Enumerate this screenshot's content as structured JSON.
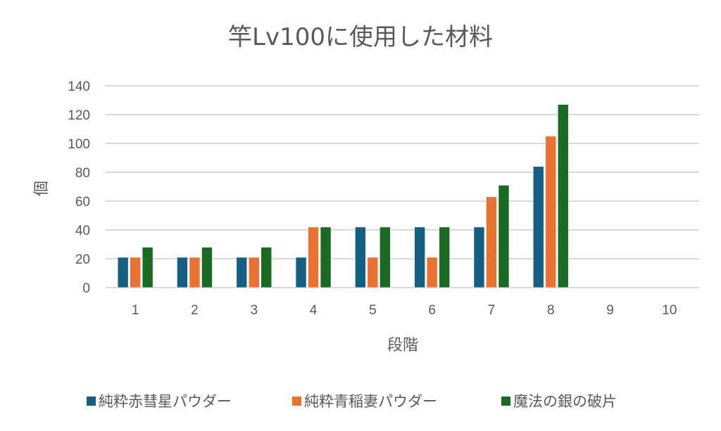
{
  "chart_data": {
    "type": "bar",
    "title": "竿Lv100に使用した材料",
    "xlabel": "段階",
    "ylabel": "個",
    "ylim": [
      0,
      140
    ],
    "yticks": [
      0,
      20,
      40,
      60,
      80,
      100,
      120,
      140
    ],
    "grid": true,
    "legend_position": "bottom",
    "categories": [
      "1",
      "2",
      "3",
      "4",
      "5",
      "6",
      "7",
      "8",
      "9",
      "10"
    ],
    "series": [
      {
        "name": "純粋赤彗星パウダー",
        "color": "#156082",
        "values": [
          21,
          21,
          21,
          21,
          42,
          42,
          42,
          84,
          null,
          null
        ]
      },
      {
        "name": "純粋青稲妻パウダー",
        "color": "#E97132",
        "values": [
          21,
          21,
          21,
          42,
          21,
          21,
          63,
          105,
          null,
          null
        ]
      },
      {
        "name": "魔法の銀の破片",
        "color": "#196B24",
        "values": [
          28,
          28,
          28,
          42,
          42,
          42,
          71,
          127,
          null,
          null
        ]
      }
    ]
  }
}
